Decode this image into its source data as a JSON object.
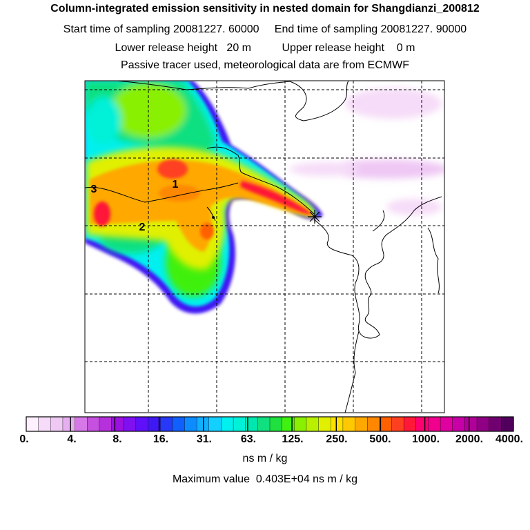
{
  "header": {
    "title": "Column-integrated emission sensitivity in nested domain for Shangdianzi_200812",
    "sampling_line": "Start time of sampling 20081227. 60000     End time of sampling 20081227. 90000",
    "release_line": "Lower release height   20 m          Upper release height    0 m",
    "tracer_line": "Passive tracer used, meteorological data are from ECMWF"
  },
  "map": {
    "markers": [
      {
        "label": "1"
      },
      {
        "label": "2"
      },
      {
        "label": "3"
      }
    ],
    "release_site_icon": "star-marker-icon",
    "grid": true
  },
  "colorbar": {
    "tick_labels": [
      "0.",
      "4.",
      "8.",
      "16.",
      "31.",
      "63.",
      "125.",
      "250.",
      "500.",
      "1000.",
      "2000.",
      "4000."
    ],
    "colors": [
      "#fff0ff",
      "#f6dcf8",
      "#efc8f4",
      "#e6b0f0",
      "#d678e8",
      "#c650e0",
      "#b630dc",
      "#9c10e0",
      "#8010f0",
      "#6010f8",
      "#4018f4",
      "#2838f8",
      "#1060ff",
      "#0c8cff",
      "#10b0ff",
      "#14d0ff",
      "#00f0f0",
      "#00f0d8",
      "#00e8b0",
      "#10e080",
      "#20e040",
      "#40f010",
      "#88f000",
      "#b8f000",
      "#e0f000",
      "#ffe000",
      "#ffc800",
      "#ffa800",
      "#ff8800",
      "#ff6000",
      "#ff4020",
      "#ff1838",
      "#ff0070",
      "#f0008c",
      "#e000a0",
      "#c800a8",
      "#b00098",
      "#900084",
      "#700070",
      "#50005c"
    ],
    "unit": "ns m / kg",
    "max_value_text": "Maximum value  0.403E+04 ns m / kg"
  }
}
